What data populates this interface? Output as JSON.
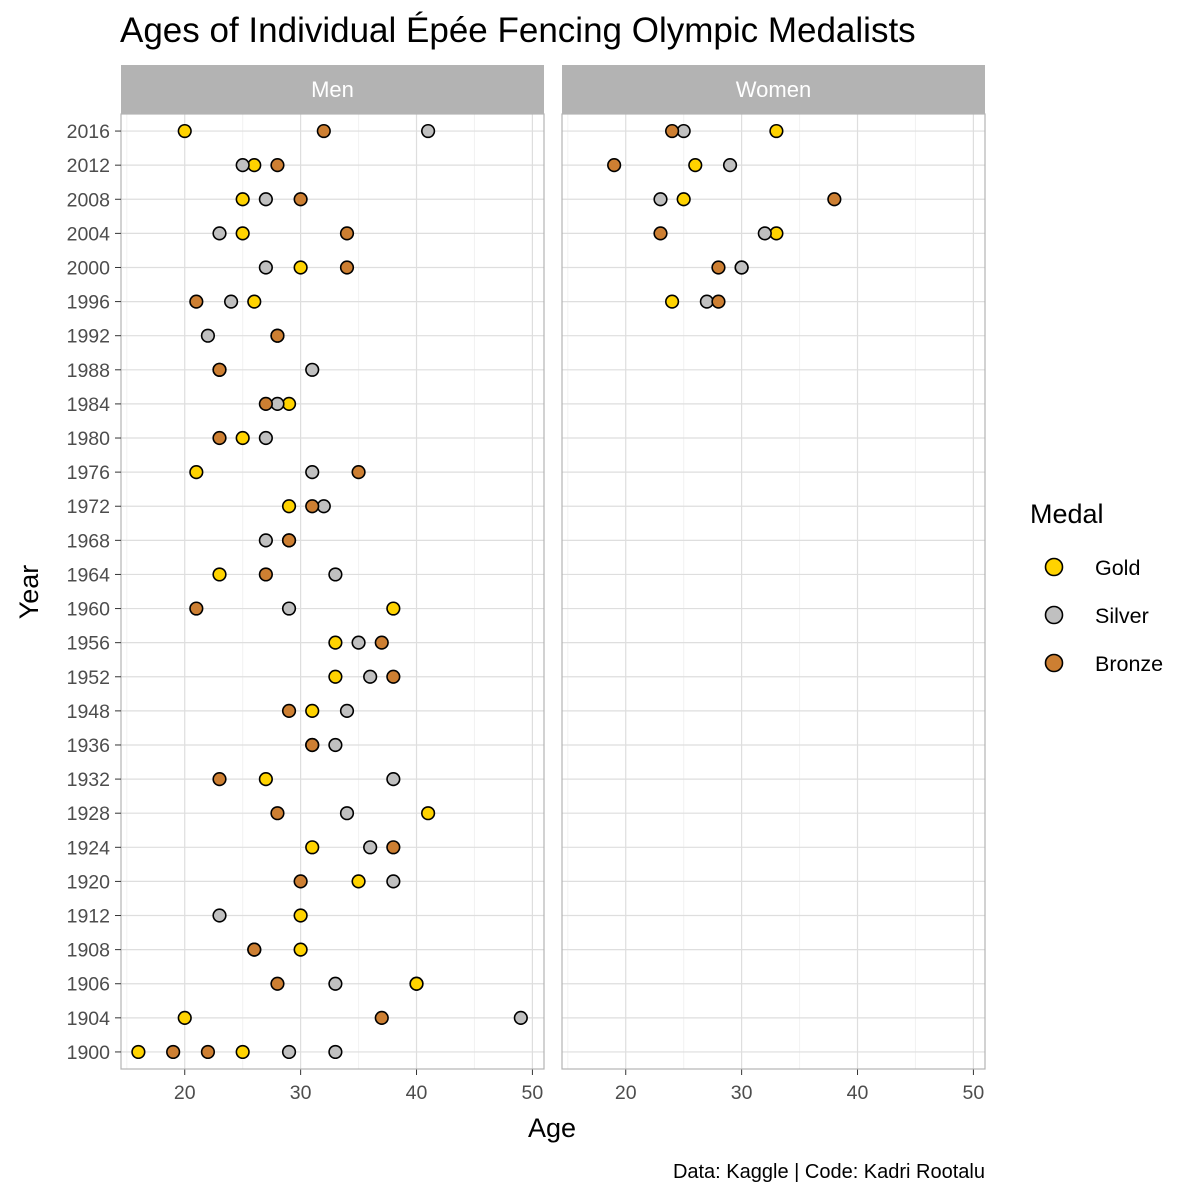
{
  "chart_data": {
    "type": "scatter",
    "title": "Ages of Individual Épée Fencing Olympic Medalists",
    "xlabel": "Age",
    "ylabel": "Year",
    "caption": "Data: Kaggle | Code: Kadri Rootalu",
    "xlim": [
      14.5,
      51
    ],
    "x_ticks": [
      20,
      30,
      40,
      50
    ],
    "grid": true,
    "legend": {
      "title": "Medal",
      "position": "right",
      "entries": [
        "Gold",
        "Silver",
        "Bronze"
      ]
    },
    "colors": {
      "Gold": "#FFD300",
      "Silver": "#C0C0C0",
      "Bronze": "#CD7F32"
    },
    "categories": [
      "1900",
      "1904",
      "1906",
      "1908",
      "1912",
      "1920",
      "1924",
      "1928",
      "1932",
      "1936",
      "1948",
      "1952",
      "1956",
      "1960",
      "1964",
      "1968",
      "1972",
      "1976",
      "1980",
      "1984",
      "1988",
      "1992",
      "1996",
      "2000",
      "2004",
      "2008",
      "2012",
      "2016"
    ],
    "facets": [
      {
        "name": "Men",
        "points": [
          {
            "year": "2016",
            "age": 20,
            "medal": "Gold"
          },
          {
            "year": "2016",
            "age": 41,
            "medal": "Silver"
          },
          {
            "year": "2016",
            "age": 32,
            "medal": "Bronze"
          },
          {
            "year": "2012",
            "age": 26,
            "medal": "Gold"
          },
          {
            "year": "2012",
            "age": 25,
            "medal": "Silver"
          },
          {
            "year": "2012",
            "age": 28,
            "medal": "Bronze"
          },
          {
            "year": "2008",
            "age": 25,
            "medal": "Gold"
          },
          {
            "year": "2008",
            "age": 27,
            "medal": "Silver"
          },
          {
            "year": "2008",
            "age": 30,
            "medal": "Bronze"
          },
          {
            "year": "2004",
            "age": 25,
            "medal": "Gold"
          },
          {
            "year": "2004",
            "age": 23,
            "medal": "Silver"
          },
          {
            "year": "2004",
            "age": 34,
            "medal": "Bronze"
          },
          {
            "year": "2000",
            "age": 30,
            "medal": "Gold"
          },
          {
            "year": "2000",
            "age": 27,
            "medal": "Silver"
          },
          {
            "year": "2000",
            "age": 34,
            "medal": "Bronze"
          },
          {
            "year": "1996",
            "age": 26,
            "medal": "Gold"
          },
          {
            "year": "1996",
            "age": 24,
            "medal": "Silver"
          },
          {
            "year": "1996",
            "age": 21,
            "medal": "Bronze"
          },
          {
            "year": "1992",
            "age": 28,
            "medal": "Gold"
          },
          {
            "year": "1992",
            "age": 22,
            "medal": "Silver"
          },
          {
            "year": "1992",
            "age": 28,
            "medal": "Bronze"
          },
          {
            "year": "1988",
            "age": 23,
            "medal": "Gold"
          },
          {
            "year": "1988",
            "age": 31,
            "medal": "Silver"
          },
          {
            "year": "1988",
            "age": 23,
            "medal": "Bronze"
          },
          {
            "year": "1984",
            "age": 29,
            "medal": "Gold"
          },
          {
            "year": "1984",
            "age": 28,
            "medal": "Silver"
          },
          {
            "year": "1984",
            "age": 27,
            "medal": "Bronze"
          },
          {
            "year": "1980",
            "age": 25,
            "medal": "Gold"
          },
          {
            "year": "1980",
            "age": 27,
            "medal": "Silver"
          },
          {
            "year": "1980",
            "age": 23,
            "medal": "Bronze"
          },
          {
            "year": "1976",
            "age": 21,
            "medal": "Gold"
          },
          {
            "year": "1976",
            "age": 31,
            "medal": "Silver"
          },
          {
            "year": "1976",
            "age": 35,
            "medal": "Bronze"
          },
          {
            "year": "1972",
            "age": 29,
            "medal": "Gold"
          },
          {
            "year": "1972",
            "age": 32,
            "medal": "Silver"
          },
          {
            "year": "1972",
            "age": 31,
            "medal": "Bronze"
          },
          {
            "year": "1968",
            "age": 29,
            "medal": "Gold"
          },
          {
            "year": "1968",
            "age": 27,
            "medal": "Silver"
          },
          {
            "year": "1968",
            "age": 29,
            "medal": "Bronze"
          },
          {
            "year": "1964",
            "age": 23,
            "medal": "Gold"
          },
          {
            "year": "1964",
            "age": 33,
            "medal": "Silver"
          },
          {
            "year": "1964",
            "age": 27,
            "medal": "Bronze"
          },
          {
            "year": "1960",
            "age": 38,
            "medal": "Gold"
          },
          {
            "year": "1960",
            "age": 29,
            "medal": "Silver"
          },
          {
            "year": "1960",
            "age": 21,
            "medal": "Bronze"
          },
          {
            "year": "1956",
            "age": 33,
            "medal": "Gold"
          },
          {
            "year": "1956",
            "age": 35,
            "medal": "Silver"
          },
          {
            "year": "1956",
            "age": 37,
            "medal": "Bronze"
          },
          {
            "year": "1952",
            "age": 33,
            "medal": "Gold"
          },
          {
            "year": "1952",
            "age": 36,
            "medal": "Silver"
          },
          {
            "year": "1952",
            "age": 38,
            "medal": "Bronze"
          },
          {
            "year": "1948",
            "age": 31,
            "medal": "Gold"
          },
          {
            "year": "1948",
            "age": 34,
            "medal": "Silver"
          },
          {
            "year": "1948",
            "age": 29,
            "medal": "Bronze"
          },
          {
            "year": "1936",
            "age": 31,
            "medal": "Gold"
          },
          {
            "year": "1936",
            "age": 33,
            "medal": "Silver"
          },
          {
            "year": "1936",
            "age": 31,
            "medal": "Bronze"
          },
          {
            "year": "1932",
            "age": 27,
            "medal": "Gold"
          },
          {
            "year": "1932",
            "age": 38,
            "medal": "Silver"
          },
          {
            "year": "1932",
            "age": 23,
            "medal": "Bronze"
          },
          {
            "year": "1928",
            "age": 41,
            "medal": "Gold"
          },
          {
            "year": "1928",
            "age": 34,
            "medal": "Silver"
          },
          {
            "year": "1928",
            "age": 28,
            "medal": "Bronze"
          },
          {
            "year": "1924",
            "age": 31,
            "medal": "Gold"
          },
          {
            "year": "1924",
            "age": 36,
            "medal": "Silver"
          },
          {
            "year": "1924",
            "age": 38,
            "medal": "Bronze"
          },
          {
            "year": "1920",
            "age": 35,
            "medal": "Gold"
          },
          {
            "year": "1920",
            "age": 38,
            "medal": "Silver"
          },
          {
            "year": "1920",
            "age": 30,
            "medal": "Bronze"
          },
          {
            "year": "1912",
            "age": 30,
            "medal": "Gold"
          },
          {
            "year": "1912",
            "age": 23,
            "medal": "Silver"
          },
          {
            "year": "1908",
            "age": 30,
            "medal": "Gold"
          },
          {
            "year": "1908",
            "age": 26,
            "medal": "Silver"
          },
          {
            "year": "1908",
            "age": 26,
            "medal": "Bronze"
          },
          {
            "year": "1906",
            "age": 40,
            "medal": "Gold"
          },
          {
            "year": "1906",
            "age": 40,
            "medal": "Gold"
          },
          {
            "year": "1906",
            "age": 33,
            "medal": "Silver"
          },
          {
            "year": "1906",
            "age": 28,
            "medal": "Bronze"
          },
          {
            "year": "1904",
            "age": 20,
            "medal": "Gold"
          },
          {
            "year": "1904",
            "age": 49,
            "medal": "Silver"
          },
          {
            "year": "1904",
            "age": 37,
            "medal": "Bronze"
          },
          {
            "year": "1900",
            "age": 16,
            "medal": "Gold"
          },
          {
            "year": "1900",
            "age": 25,
            "medal": "Gold"
          },
          {
            "year": "1900",
            "age": 29,
            "medal": "Silver"
          },
          {
            "year": "1900",
            "age": 33,
            "medal": "Silver"
          },
          {
            "year": "1900",
            "age": 19,
            "medal": "Bronze"
          },
          {
            "year": "1900",
            "age": 22,
            "medal": "Bronze"
          }
        ]
      },
      {
        "name": "Women",
        "points": [
          {
            "year": "2016",
            "age": 33,
            "medal": "Gold"
          },
          {
            "year": "2016",
            "age": 25,
            "medal": "Silver"
          },
          {
            "year": "2016",
            "age": 24,
            "medal": "Bronze"
          },
          {
            "year": "2012",
            "age": 26,
            "medal": "Gold"
          },
          {
            "year": "2012",
            "age": 29,
            "medal": "Silver"
          },
          {
            "year": "2012",
            "age": 19,
            "medal": "Bronze"
          },
          {
            "year": "2008",
            "age": 25,
            "medal": "Gold"
          },
          {
            "year": "2008",
            "age": 23,
            "medal": "Silver"
          },
          {
            "year": "2008",
            "age": 38,
            "medal": "Bronze"
          },
          {
            "year": "2004",
            "age": 33,
            "medal": "Gold"
          },
          {
            "year": "2004",
            "age": 32,
            "medal": "Silver"
          },
          {
            "year": "2004",
            "age": 23,
            "medal": "Bronze"
          },
          {
            "year": "2000",
            "age": 30,
            "medal": "Gold"
          },
          {
            "year": "2000",
            "age": 30,
            "medal": "Silver"
          },
          {
            "year": "2000",
            "age": 28,
            "medal": "Bronze"
          },
          {
            "year": "1996",
            "age": 24,
            "medal": "Gold"
          },
          {
            "year": "1996",
            "age": 27,
            "medal": "Silver"
          },
          {
            "year": "1996",
            "age": 28,
            "medal": "Bronze"
          }
        ]
      }
    ]
  }
}
